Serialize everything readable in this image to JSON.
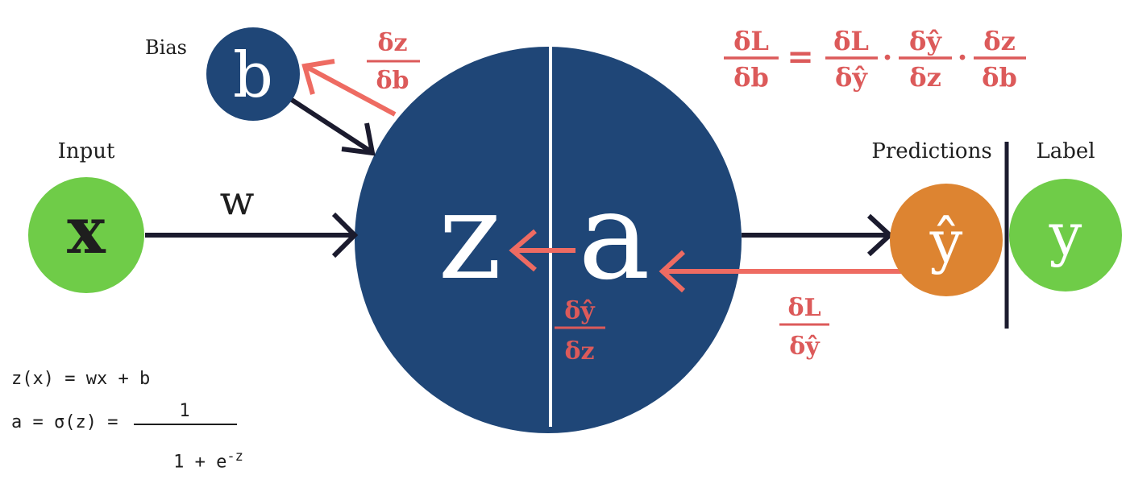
{
  "colors": {
    "navy": "#1f4677",
    "green": "#6fcc48",
    "orange": "#dd8431",
    "red_arrow": "#ee6b62",
    "red_text": "#dc5a5a",
    "dark": "#1b1b2e"
  },
  "labels": {
    "bias": "Bias",
    "input": "Input",
    "predictions": "Predictions",
    "label": "Label",
    "w": "w"
  },
  "nodes": {
    "b": "b",
    "x": "x",
    "z": "z",
    "a": "a",
    "yhat": "ŷ",
    "y": "y"
  },
  "gradients": {
    "dz_db": {
      "num": "δz",
      "den": "δb"
    },
    "dyhat_dz": {
      "num": "δŷ",
      "den": "δz"
    },
    "dL_dyhat": {
      "num": "δL",
      "den": "δŷ"
    }
  },
  "chain_rule": {
    "lhs": {
      "num": "δL",
      "den": "δb"
    },
    "equals": "=",
    "dot": "·",
    "t1": {
      "num": "δL",
      "den": "δŷ"
    },
    "t2": {
      "num": "δŷ",
      "den": "δz"
    },
    "t3": {
      "num": "δz",
      "den": "δb"
    }
  },
  "formulas": {
    "z_line": "z(x) = wx + b",
    "a_prefix": "a = σ(z) =",
    "a_num": "1",
    "a_den_base": "1 + e",
    "a_den_exp": "-z"
  }
}
